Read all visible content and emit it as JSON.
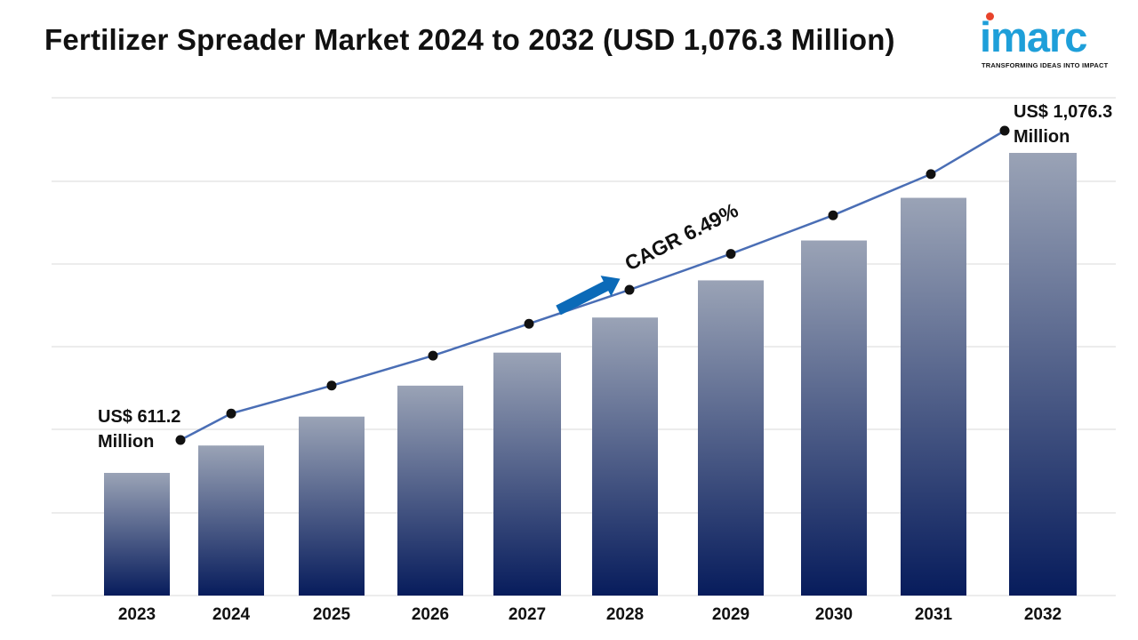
{
  "header": {
    "title": "Fertilizer Spreader Market 2024 to 2032 (USD 1,076.3 Million)"
  },
  "logo": {
    "word": "imarc",
    "tagline": "TRANSFORMING IDEAS INTO IMPACT",
    "colors": {
      "word": "#1e9fd9",
      "dot": "#e8432b"
    }
  },
  "chart_data": {
    "type": "bar",
    "title": "Fertilizer Spreader Market 2024 to 2032 (USD 1,076.3 Million)",
    "categories": [
      "2023",
      "2024",
      "2025",
      "2026",
      "2027",
      "2028",
      "2029",
      "2030",
      "2031",
      "2032"
    ],
    "values": [
      611.2,
      651,
      693,
      738,
      786,
      837,
      891,
      949,
      1011,
      1076.3
    ],
    "trend_line_values": [
      611.2,
      651,
      693,
      738,
      786,
      837,
      891,
      949,
      1011,
      1076.3
    ],
    "unit": "USD Million",
    "grid": true,
    "annotations": {
      "start_line1": "US$ 611.2",
      "start_line2": "Million",
      "end_line1": "US$ 1,076.3",
      "end_line2": "Million",
      "cagr": "CAGR 6.49%"
    },
    "colors": {
      "bar_top": "#9aa3b6",
      "bar_bottom": "#071c5c",
      "line": "#4a6eb5",
      "marker": "#111111",
      "arrow": "#0b6ab8",
      "grid": "#d9d9d9"
    }
  }
}
